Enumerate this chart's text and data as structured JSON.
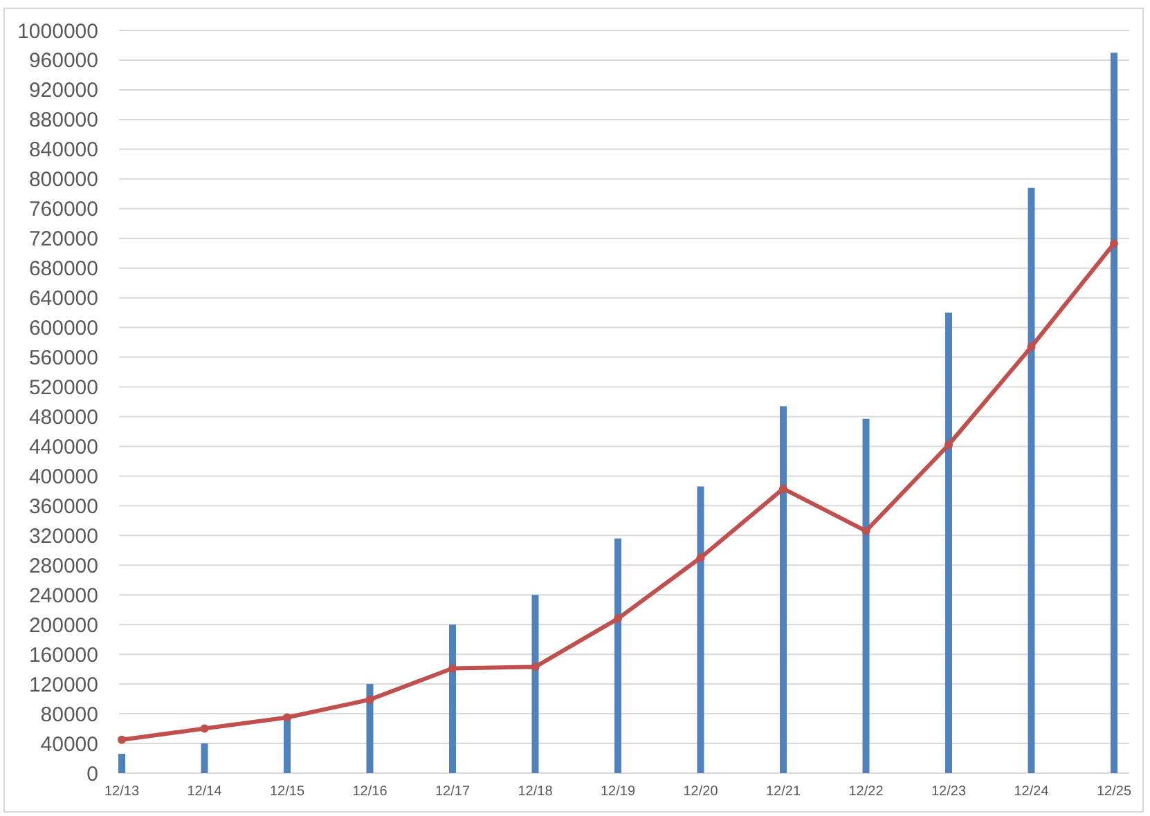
{
  "chart_data": {
    "type": "bar",
    "categories": [
      "12/13",
      "12/14",
      "12/15",
      "12/16",
      "12/17",
      "12/18",
      "12/19",
      "12/20",
      "12/21",
      "12/22",
      "12/23",
      "12/24",
      "12/25"
    ],
    "series": [
      {
        "color": "#4f81bd",
        "values": [
          26000,
          40000,
          76000,
          120000,
          200000,
          240000,
          316000,
          386000,
          494000,
          477000,
          620000,
          788000,
          970000
        ]
      },
      {
        "type": "line",
        "color": "#c0504d",
        "values": [
          45000,
          60000,
          75000,
          99000,
          141000,
          143000,
          208000,
          290000,
          383000,
          326000,
          442000,
          574000,
          713000
        ]
      }
    ],
    "ylim": [
      0,
      1000000
    ],
    "yticks": [
      0,
      40000,
      80000,
      120000,
      160000,
      200000,
      240000,
      280000,
      320000,
      360000,
      400000,
      440000,
      480000,
      520000,
      560000,
      600000,
      640000,
      680000,
      720000,
      760000,
      800000,
      840000,
      880000,
      920000,
      960000,
      1000000
    ],
    "grid": "y",
    "marker": "circle",
    "line_style": "solid"
  }
}
